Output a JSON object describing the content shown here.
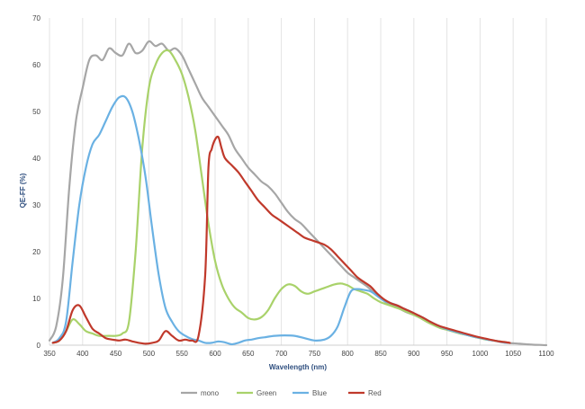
{
  "chart_data": {
    "type": "line",
    "title": "",
    "xlabel": "Wavelength (nm)",
    "ylabel": "QE-FF (%)",
    "xlim": [
      350,
      1100
    ],
    "ylim": [
      0,
      70
    ],
    "xticks": [
      350,
      400,
      450,
      500,
      550,
      600,
      650,
      700,
      750,
      800,
      850,
      900,
      950,
      1000,
      1050,
      1100
    ],
    "yticks": [
      0,
      10,
      20,
      30,
      40,
      50,
      60,
      70
    ],
    "grid": "vertical",
    "legend_position": "bottom",
    "series": [
      {
        "name": "mono",
        "color": "#a6a6a6",
        "points": [
          [
            350,
            1
          ],
          [
            360,
            4
          ],
          [
            370,
            14
          ],
          [
            380,
            34
          ],
          [
            390,
            48
          ],
          [
            400,
            55
          ],
          [
            410,
            61
          ],
          [
            420,
            62
          ],
          [
            430,
            61
          ],
          [
            440,
            63.5
          ],
          [
            450,
            62.5
          ],
          [
            460,
            62
          ],
          [
            470,
            64.5
          ],
          [
            480,
            62.5
          ],
          [
            490,
            63
          ],
          [
            500,
            65
          ],
          [
            510,
            64
          ],
          [
            520,
            64.5
          ],
          [
            530,
            63
          ],
          [
            540,
            63.5
          ],
          [
            550,
            62
          ],
          [
            560,
            59
          ],
          [
            570,
            56
          ],
          [
            580,
            53
          ],
          [
            590,
            51
          ],
          [
            600,
            49
          ],
          [
            610,
            47
          ],
          [
            620,
            45
          ],
          [
            630,
            42
          ],
          [
            640,
            40
          ],
          [
            650,
            38
          ],
          [
            660,
            36.5
          ],
          [
            670,
            35
          ],
          [
            680,
            34
          ],
          [
            690,
            32.5
          ],
          [
            700,
            30.5
          ],
          [
            710,
            28.5
          ],
          [
            720,
            27
          ],
          [
            730,
            26
          ],
          [
            740,
            24.5
          ],
          [
            750,
            23
          ],
          [
            760,
            21.5
          ],
          [
            770,
            20
          ],
          [
            780,
            18.5
          ],
          [
            790,
            17
          ],
          [
            800,
            15.5
          ],
          [
            810,
            14.5
          ],
          [
            820,
            13.5
          ],
          [
            830,
            12.5
          ],
          [
            840,
            11.2
          ],
          [
            850,
            10
          ],
          [
            860,
            9
          ],
          [
            870,
            8.5
          ],
          [
            880,
            7.7
          ],
          [
            890,
            7
          ],
          [
            900,
            6.5
          ],
          [
            910,
            5.8
          ],
          [
            920,
            5
          ],
          [
            930,
            4.3
          ],
          [
            940,
            3.7
          ],
          [
            950,
            3.3
          ],
          [
            960,
            2.9
          ],
          [
            970,
            2.5
          ],
          [
            980,
            2.2
          ],
          [
            990,
            1.8
          ],
          [
            1000,
            1.5
          ],
          [
            1010,
            1.2
          ],
          [
            1020,
            1
          ],
          [
            1030,
            0.7
          ],
          [
            1040,
            0.5
          ],
          [
            1050,
            0.4
          ],
          [
            1060,
            0.3
          ],
          [
            1070,
            0.2
          ],
          [
            1080,
            0.1
          ],
          [
            1090,
            0.05
          ],
          [
            1100,
            0
          ]
        ]
      },
      {
        "name": "Green",
        "color": "#a9d26a",
        "points": [
          [
            355,
            0.5
          ],
          [
            365,
            1
          ],
          [
            375,
            3
          ],
          [
            385,
            5.5
          ],
          [
            395,
            4.5
          ],
          [
            405,
            3
          ],
          [
            415,
            2.5
          ],
          [
            425,
            2
          ],
          [
            440,
            2
          ],
          [
            450,
            2
          ],
          [
            460,
            2.5
          ],
          [
            470,
            5
          ],
          [
            480,
            20
          ],
          [
            490,
            42
          ],
          [
            500,
            55
          ],
          [
            510,
            60
          ],
          [
            520,
            62.5
          ],
          [
            530,
            63
          ],
          [
            540,
            61
          ],
          [
            550,
            58
          ],
          [
            560,
            53
          ],
          [
            570,
            46
          ],
          [
            580,
            36
          ],
          [
            590,
            26
          ],
          [
            600,
            18
          ],
          [
            610,
            13
          ],
          [
            620,
            10
          ],
          [
            630,
            8
          ],
          [
            640,
            7
          ],
          [
            650,
            5.8
          ],
          [
            660,
            5.5
          ],
          [
            670,
            6
          ],
          [
            680,
            7.5
          ],
          [
            690,
            10
          ],
          [
            700,
            12
          ],
          [
            710,
            13
          ],
          [
            720,
            12.7
          ],
          [
            730,
            11.5
          ],
          [
            740,
            11
          ],
          [
            750,
            11.5
          ],
          [
            760,
            12
          ],
          [
            770,
            12.5
          ],
          [
            780,
            13
          ],
          [
            790,
            13.2
          ],
          [
            800,
            12.8
          ],
          [
            810,
            12
          ],
          [
            820,
            11.5
          ],
          [
            830,
            11
          ],
          [
            840,
            10
          ],
          [
            850,
            9.2
          ],
          [
            860,
            8.7
          ],
          [
            870,
            8.2
          ],
          [
            880,
            7.7
          ],
          [
            890,
            7.1
          ],
          [
            900,
            6.5
          ],
          [
            910,
            5.8
          ],
          [
            920,
            5
          ],
          [
            930,
            4.3
          ],
          [
            940,
            3.7
          ],
          [
            950,
            3.3
          ],
          [
            960,
            2.9
          ],
          [
            970,
            2.5
          ],
          [
            980,
            2.2
          ],
          [
            990,
            1.8
          ],
          [
            1000,
            1.5
          ],
          [
            1010,
            1.2
          ],
          [
            1020,
            1
          ],
          [
            1030,
            0.8
          ],
          [
            1040,
            0.6
          ]
        ]
      },
      {
        "name": "Blue",
        "color": "#6ab1e3",
        "points": [
          [
            355,
            0.5
          ],
          [
            365,
            1.5
          ],
          [
            375,
            5
          ],
          [
            385,
            18
          ],
          [
            395,
            30
          ],
          [
            405,
            38
          ],
          [
            415,
            43
          ],
          [
            425,
            45
          ],
          [
            435,
            48
          ],
          [
            445,
            51
          ],
          [
            455,
            53
          ],
          [
            465,
            53
          ],
          [
            475,
            50
          ],
          [
            485,
            44
          ],
          [
            495,
            36
          ],
          [
            505,
            25
          ],
          [
            515,
            15
          ],
          [
            525,
            8
          ],
          [
            535,
            5
          ],
          [
            545,
            3
          ],
          [
            555,
            2
          ],
          [
            565,
            1.3
          ],
          [
            575,
            1
          ],
          [
            585,
            0.5
          ],
          [
            595,
            0.5
          ],
          [
            605,
            0.8
          ],
          [
            615,
            0.6
          ],
          [
            625,
            0.2
          ],
          [
            635,
            0.5
          ],
          [
            645,
            1
          ],
          [
            655,
            1.2
          ],
          [
            665,
            1.5
          ],
          [
            675,
            1.7
          ],
          [
            690,
            2
          ],
          [
            705,
            2.1
          ],
          [
            720,
            2
          ],
          [
            735,
            1.5
          ],
          [
            750,
            1
          ],
          [
            765,
            1.2
          ],
          [
            775,
            2
          ],
          [
            785,
            4
          ],
          [
            795,
            8
          ],
          [
            805,
            11.5
          ],
          [
            815,
            12
          ],
          [
            825,
            11.8
          ],
          [
            835,
            11.5
          ],
          [
            845,
            10.5
          ],
          [
            855,
            9.5
          ],
          [
            865,
            9
          ],
          [
            875,
            8.5
          ],
          [
            885,
            7.8
          ],
          [
            895,
            7.2
          ],
          [
            905,
            6.5
          ],
          [
            915,
            5.8
          ],
          [
            925,
            5
          ],
          [
            935,
            4.3
          ],
          [
            945,
            3.7
          ],
          [
            955,
            3.2
          ],
          [
            965,
            2.8
          ],
          [
            975,
            2.4
          ],
          [
            985,
            2
          ],
          [
            995,
            1.7
          ],
          [
            1005,
            1.4
          ],
          [
            1015,
            1.1
          ],
          [
            1025,
            0.9
          ],
          [
            1035,
            0.6
          ],
          [
            1040,
            0.5
          ]
        ]
      },
      {
        "name": "Red",
        "color": "#c0392b",
        "points": [
          [
            355,
            0.5
          ],
          [
            365,
            1
          ],
          [
            375,
            3
          ],
          [
            385,
            7.5
          ],
          [
            395,
            8.5
          ],
          [
            405,
            6
          ],
          [
            415,
            3.5
          ],
          [
            425,
            2.5
          ],
          [
            435,
            1.5
          ],
          [
            445,
            1.2
          ],
          [
            455,
            1
          ],
          [
            465,
            1.2
          ],
          [
            475,
            0.8
          ],
          [
            485,
            0.5
          ],
          [
            495,
            0.3
          ],
          [
            505,
            0.5
          ],
          [
            515,
            1
          ],
          [
            525,
            3
          ],
          [
            535,
            2
          ],
          [
            545,
            1
          ],
          [
            555,
            1.2
          ],
          [
            565,
            1
          ],
          [
            575,
            2
          ],
          [
            585,
            15
          ],
          [
            590,
            38
          ],
          [
            595,
            42
          ],
          [
            600,
            44
          ],
          [
            605,
            44.5
          ],
          [
            610,
            42
          ],
          [
            615,
            40
          ],
          [
            625,
            38.5
          ],
          [
            635,
            37
          ],
          [
            645,
            35
          ],
          [
            655,
            33
          ],
          [
            665,
            31
          ],
          [
            675,
            29.5
          ],
          [
            685,
            28
          ],
          [
            695,
            27
          ],
          [
            705,
            26
          ],
          [
            715,
            25
          ],
          [
            725,
            24
          ],
          [
            735,
            23
          ],
          [
            745,
            22.5
          ],
          [
            755,
            22
          ],
          [
            765,
            21.5
          ],
          [
            775,
            20.5
          ],
          [
            785,
            19
          ],
          [
            795,
            17.5
          ],
          [
            805,
            16
          ],
          [
            815,
            14.5
          ],
          [
            825,
            13.5
          ],
          [
            835,
            12.5
          ],
          [
            845,
            11
          ],
          [
            855,
            9.8
          ],
          [
            865,
            9
          ],
          [
            875,
            8.5
          ],
          [
            885,
            7.8
          ],
          [
            895,
            7.2
          ],
          [
            905,
            6.5
          ],
          [
            915,
            5.8
          ],
          [
            925,
            5
          ],
          [
            935,
            4.3
          ],
          [
            945,
            3.8
          ],
          [
            955,
            3.4
          ],
          [
            965,
            3
          ],
          [
            975,
            2.6
          ],
          [
            985,
            2.2
          ],
          [
            995,
            1.8
          ],
          [
            1005,
            1.5
          ],
          [
            1015,
            1.2
          ],
          [
            1025,
            0.9
          ],
          [
            1035,
            0.7
          ],
          [
            1045,
            0.5
          ]
        ]
      }
    ]
  }
}
